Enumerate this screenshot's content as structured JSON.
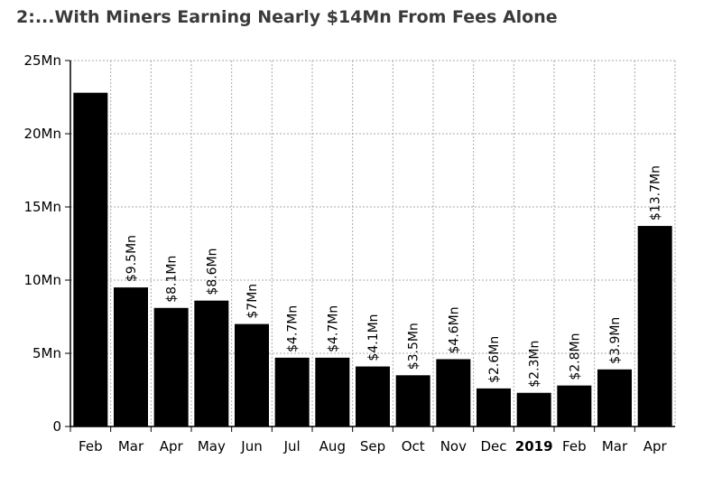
{
  "title": "2:...With Miners Earning Nearly $14Mn From Fees Alone",
  "chart_data": {
    "type": "bar",
    "categories": [
      "Feb",
      "Mar",
      "Apr",
      "May",
      "Jun",
      "Jul",
      "Aug",
      "Sep",
      "Oct",
      "Nov",
      "Dec",
      "2019",
      "Feb",
      "Mar",
      "Apr"
    ],
    "bold_categories": [
      "2019"
    ],
    "values": [
      22.8,
      9.5,
      8.1,
      8.6,
      7.0,
      4.7,
      4.7,
      4.1,
      3.5,
      4.6,
      2.6,
      2.3,
      2.8,
      3.9,
      13.7
    ],
    "data_labels": [
      "",
      "$9.5Mn",
      "$8.1Mn",
      "$8.6Mn",
      "$7Mn",
      "$4.7Mn",
      "$4.7Mn",
      "$4.1Mn",
      "$3.5Mn",
      "$4.6Mn",
      "$2.6Mn",
      "$2.3Mn",
      "$2.8Mn",
      "$3.9Mn",
      "$13.7Mn"
    ],
    "yticks": [
      0,
      5,
      10,
      15,
      20,
      25
    ],
    "ytick_labels": [
      "0",
      "5Mn",
      "10Mn",
      "15Mn",
      "20Mn",
      "25Mn"
    ],
    "ylim": [
      0,
      25
    ],
    "xlabel": "",
    "ylabel": "",
    "grid": true,
    "bar_color": "#000000",
    "grid_color": "#aaaaaa"
  }
}
